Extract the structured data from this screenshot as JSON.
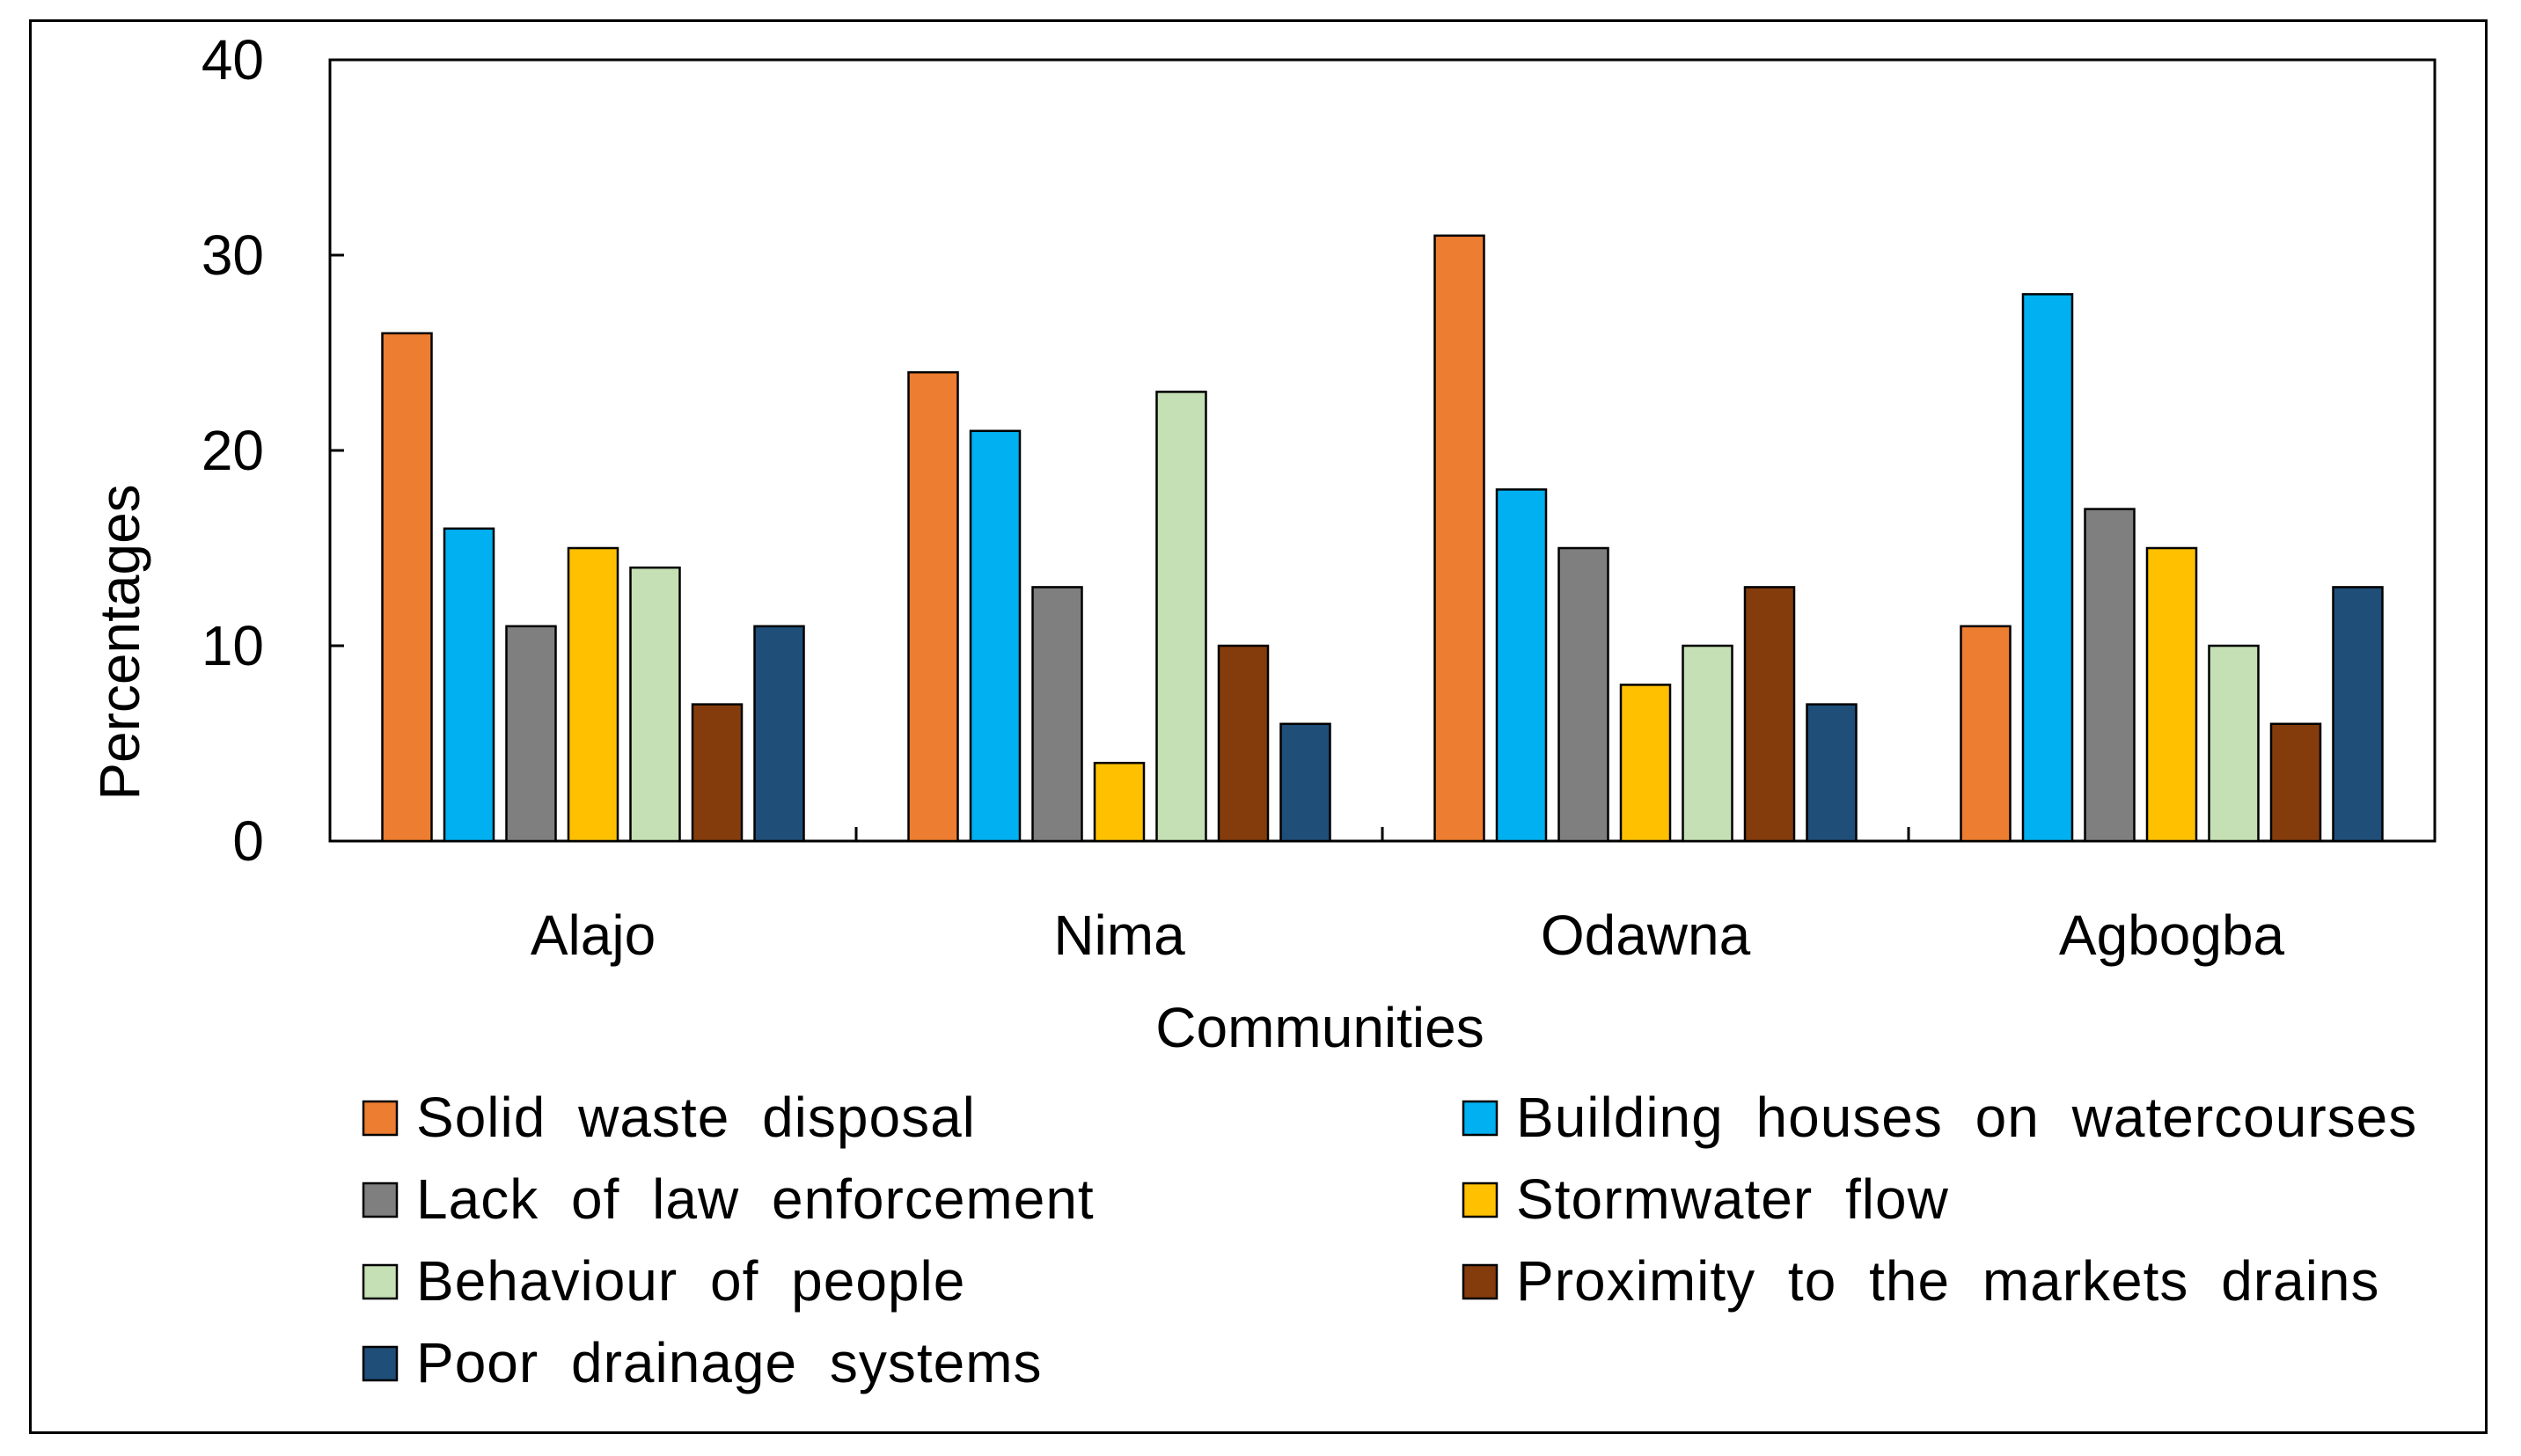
{
  "chart_data": {
    "type": "bar",
    "title": "",
    "xlabel": "Communities",
    "ylabel": "Percentages",
    "ylim": [
      0,
      40
    ],
    "yticks": [
      0,
      10,
      20,
      30,
      40
    ],
    "grid": false,
    "legend_position": "bottom",
    "categories": [
      "Alajo",
      "Nima",
      "Odawna",
      "Agbogba"
    ],
    "series": [
      {
        "name": "Solid waste disposal",
        "color": "#ED7D31",
        "values": [
          26,
          24,
          31,
          11
        ]
      },
      {
        "name": "Building houses on watercourses",
        "color": "#00B0F0",
        "values": [
          16,
          21,
          18,
          28
        ]
      },
      {
        "name": "Lack of law enforcement",
        "color": "#7F7F7F",
        "values": [
          11,
          13,
          15,
          17
        ]
      },
      {
        "name": "Stormwater flow",
        "color": "#FFC000",
        "values": [
          15,
          4,
          8,
          15
        ]
      },
      {
        "name": "Behaviour of people",
        "color": "#C5E0B4",
        "values": [
          14,
          23,
          10,
          10
        ]
      },
      {
        "name": "Proximity to the markets drains",
        "color": "#843C0C",
        "values": [
          7,
          10,
          13,
          6
        ]
      },
      {
        "name": "Poor drainage systems",
        "color": "#1F4E79",
        "values": [
          11,
          6,
          7,
          13
        ]
      }
    ]
  }
}
